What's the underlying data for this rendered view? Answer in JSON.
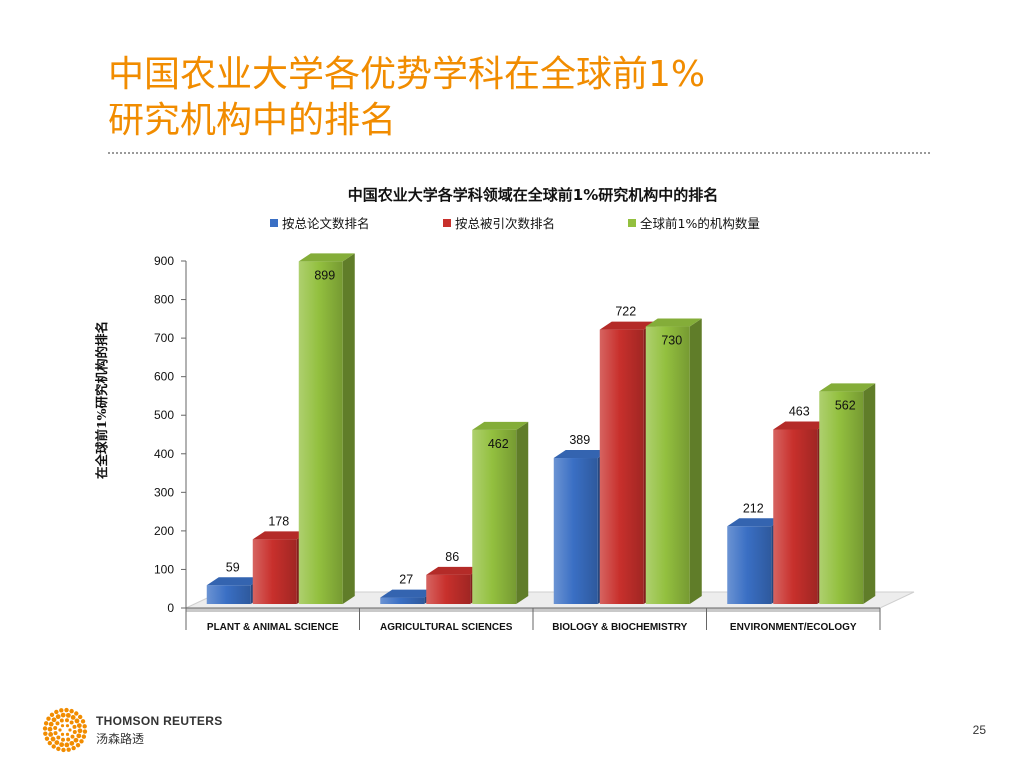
{
  "slide": {
    "title_line1": "中国农业大学各优势学科在全球前1%",
    "title_line2": "研究机构中的排名",
    "page_number": "25",
    "brand_en": "THOMSON REUTERS",
    "brand_cn": "汤森路透",
    "accent_color": "#f18c00"
  },
  "chart_data": {
    "type": "bar",
    "title": "中国农业大学各学科领域在全球前1%研究机构中的排名",
    "ylabel": "在全球前1%研究机构的排名",
    "xlabel": "",
    "ylim": [
      0,
      900
    ],
    "yticks": [
      0,
      100,
      200,
      300,
      400,
      500,
      600,
      700,
      800,
      900
    ],
    "categories": [
      "PLANT & ANIMAL SCIENCE",
      "AGRICULTURAL SCIENCES",
      "BIOLOGY & BIOCHEMISTRY",
      "ENVIRONMENT/ECOLOGY"
    ],
    "series": [
      {
        "name": "按总论文数排名",
        "color": "#3a6fc4",
        "values": [
          59,
          27,
          389,
          212
        ]
      },
      {
        "name": "按总被引次数排名",
        "color": "#c8302c",
        "values": [
          178,
          86,
          722,
          463
        ]
      },
      {
        "name": "全球前1%的机构数量",
        "color": "#93c03f",
        "values": [
          899,
          462,
          730,
          562
        ]
      }
    ],
    "legend_position": "top",
    "grid": false,
    "style": "3d"
  }
}
